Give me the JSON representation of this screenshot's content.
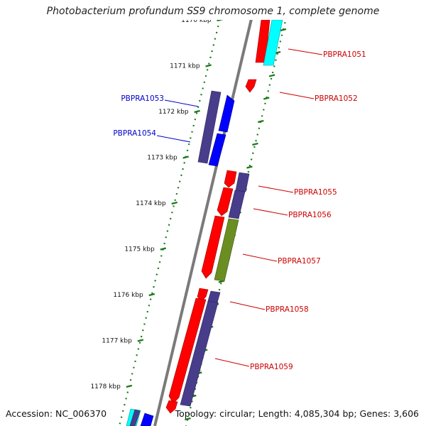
{
  "title": "Photobacterium profundum SS9 chromosome 1, complete genome",
  "footer": {
    "accession": "Accession: NC_006370",
    "summary": "Topology: circular; Length: 4,085,304 bp; Genes: 3,606"
  },
  "colors": {
    "backbone": "#8c8c8c",
    "ticks": "#1a7a1a",
    "label_forward": "#cc0000",
    "label_reverse": "#0000cc",
    "red": "#ff0000",
    "blue": "#0000ff",
    "purple": "#483d8b",
    "cyan": "#00ffff",
    "olive": "#6b8e23"
  },
  "scale_labels": [
    {
      "kbp": 1170,
      "text": "1170 kbp"
    },
    {
      "kbp": 1171,
      "text": "1171 kbp"
    },
    {
      "kbp": 1172,
      "text": "1172 kbp"
    },
    {
      "kbp": 1173,
      "text": "1173 kbp"
    },
    {
      "kbp": 1174,
      "text": "1174 kbp"
    },
    {
      "kbp": 1175,
      "text": "1175 kbp"
    },
    {
      "kbp": 1176,
      "text": "1176 kbp"
    },
    {
      "kbp": 1177,
      "text": "1177 kbp"
    },
    {
      "kbp": 1178,
      "text": "1178 kbp"
    }
  ],
  "gene_labels": [
    {
      "name": "PBPRA1051",
      "strand": "forward"
    },
    {
      "name": "PBPRA1052",
      "strand": "forward"
    },
    {
      "name": "PBPRA1053",
      "strand": "reverse"
    },
    {
      "name": "PBPRA1054",
      "strand": "reverse"
    },
    {
      "name": "PBPRA1055",
      "strand": "forward"
    },
    {
      "name": "PBPRA1056",
      "strand": "forward"
    },
    {
      "name": "PBPRA1057",
      "strand": "forward"
    },
    {
      "name": "PBPRA1058",
      "strand": "forward"
    },
    {
      "name": "PBPRA1059",
      "strand": "forward"
    }
  ]
}
